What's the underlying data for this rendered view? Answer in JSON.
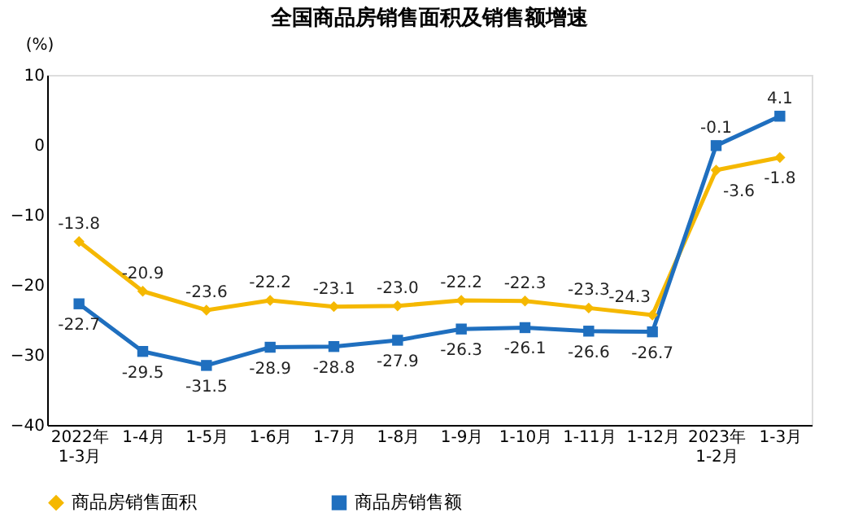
{
  "chart_data": {
    "type": "line",
    "title": "全国商品房销售面积及销售额增速",
    "ylabel": "(%)",
    "categories": [
      "2022年\n1-3月",
      "1-4月",
      "1-5月",
      "1-6月",
      "1-7月",
      "1-8月",
      "1-9月",
      "1-10月",
      "1-11月",
      "1-12月",
      "2023年\n1-2月",
      "1-3月"
    ],
    "series": [
      {
        "name": "商品房销售面积",
        "color": "#f5b800",
        "marker": "diamond",
        "values": [
          -13.8,
          -20.9,
          -23.6,
          -22.2,
          -23.1,
          -23.0,
          -22.2,
          -22.3,
          -23.3,
          -24.3,
          -3.6,
          -1.8
        ],
        "value_labels": [
          "-13.8",
          "-20.9",
          "-23.6",
          "-22.2",
          "-23.1",
          "-23.0",
          "-22.2",
          "-22.3",
          "-23.3",
          "-24.3",
          "-3.6",
          "-1.8"
        ]
      },
      {
        "name": "商品房销售额",
        "color": "#1f6fbf",
        "marker": "square",
        "values": [
          -22.7,
          -29.5,
          -31.5,
          -28.9,
          -28.8,
          -27.9,
          -26.3,
          -26.1,
          -26.6,
          -26.7,
          -0.1,
          4.1
        ],
        "value_labels": [
          "-22.7",
          "-29.5",
          "-31.5",
          "-28.9",
          "-28.8",
          "-27.9",
          "-26.3",
          "-26.1",
          "-26.6",
          "-26.7",
          "-0.1",
          "4.1"
        ]
      }
    ],
    "ylim": [
      -40,
      10
    ],
    "yticks": [
      -40,
      -30,
      -20,
      -10,
      0,
      10
    ],
    "grid": false,
    "legend": "bottom",
    "line_style": "solid"
  }
}
